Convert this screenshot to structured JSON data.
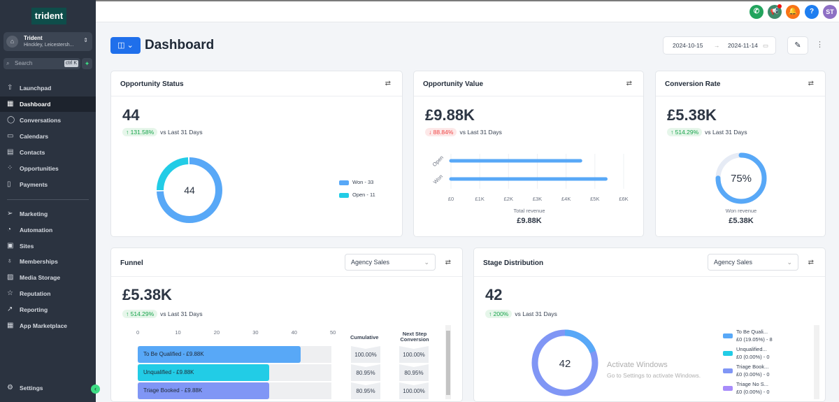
{
  "sidebar": {
    "logo": "trident",
    "account_name": "Trident",
    "account_location": "Hinckley, Leicestersh...",
    "search_placeholder": "Search",
    "search_shortcut": "ctrl K",
    "items": [
      {
        "label": "Launchpad",
        "icon": "rocket-icon"
      },
      {
        "label": "Dashboard",
        "icon": "grid-icon"
      },
      {
        "label": "Conversations",
        "icon": "chat-icon"
      },
      {
        "label": "Calendars",
        "icon": "calendar-icon"
      },
      {
        "label": "Contacts",
        "icon": "contacts-icon"
      },
      {
        "label": "Opportunities",
        "icon": "opportunities-icon"
      },
      {
        "label": "Payments",
        "icon": "payments-icon"
      }
    ],
    "items2": [
      {
        "label": "Marketing",
        "icon": "send-icon"
      },
      {
        "label": "Automation",
        "icon": "automation-icon"
      },
      {
        "label": "Sites",
        "icon": "sites-icon"
      },
      {
        "label": "Memberships",
        "icon": "award-icon"
      },
      {
        "label": "Media Storage",
        "icon": "image-icon"
      },
      {
        "label": "Reputation",
        "icon": "star-icon"
      },
      {
        "label": "Reporting",
        "icon": "trend-icon"
      },
      {
        "label": "App Marketplace",
        "icon": "apps-icon"
      }
    ],
    "settings": "Settings"
  },
  "topbar": {
    "avatar": "ST",
    "colors": {
      "phone": "#22a45d",
      "megaphone": "#3f8a6b",
      "bell": "#f97316",
      "help": "#1e7ef0",
      "avatar": "#8e6fc4"
    }
  },
  "header": {
    "title": "Dashboard",
    "date_from": "2024-10-15",
    "date_to": "2024-11-14"
  },
  "opportunity_status": {
    "title": "Opportunity Status",
    "value": "44",
    "change": "↑ 131.58%",
    "vs": "vs Last 31 Days",
    "center": "44",
    "legend": [
      "Won - 33",
      "Open - 11"
    ],
    "won": 33,
    "open": 11
  },
  "opportunity_value": {
    "title": "Opportunity Value",
    "value": "£9.88K",
    "change": "↓ 88.84%",
    "vs": "vs Last 31 Days",
    "categories": [
      "Open",
      "Won"
    ],
    "values": [
      4500,
      5380
    ],
    "ticks": [
      "£0",
      "£1K",
      "£2K",
      "£3K",
      "£4K",
      "£5K",
      "£6K"
    ],
    "total_label": "Total revenue",
    "total": "£9.88K"
  },
  "conversion_rate": {
    "title": "Conversion Rate",
    "value": "£5.38K",
    "change": "↑ 514.29%",
    "vs": "vs Last 31 Days",
    "percent": 75,
    "center": "75%",
    "label": "Won revenue",
    "total": "£5.38K"
  },
  "funnel": {
    "title": "Funnel",
    "pipeline": "Agency Sales",
    "value": "£5.38K",
    "change": "↑ 514.29%",
    "vs": "vs Last 31 Days",
    "ticks": [
      "0",
      "10",
      "20",
      "30",
      "40",
      "50"
    ],
    "col1": "Cumulative",
    "col2": "Next Step Conversion",
    "stages": [
      {
        "label": "To Be Qualified - £9.88K",
        "count": 42,
        "color": "#58a8f7",
        "cum": "100.00%",
        "next": "100.00%"
      },
      {
        "label": "Unqualified - £9.88K",
        "count": 34,
        "color": "#22cce6",
        "cum": "80.95%",
        "next": "80.95%"
      },
      {
        "label": "Triage Booked - £9.88K",
        "count": 34,
        "color": "#8096f5",
        "cum": "80.95%",
        "next": "100.00%"
      }
    ]
  },
  "stage_distribution": {
    "title": "Stage Distribution",
    "pipeline": "Agency Sales",
    "value": "42",
    "change": "↑ 200%",
    "vs": "vs Last 31 Days",
    "center": "42",
    "legend": [
      {
        "name": "To Be Quali...",
        "detail": "£0 (19.05%) - 8",
        "color": "#58a8f7"
      },
      {
        "name": "Unqualified...",
        "detail": "£0 (0.00%) - 0",
        "color": "#22cce6"
      },
      {
        "name": "Triage Book...",
        "detail": "£0 (0.00%) - 0",
        "color": "#8096f5"
      },
      {
        "name": "Triage No S...",
        "detail": "£0 (0.00%) - 0",
        "color": "#a78bfa"
      }
    ]
  },
  "watermark": {
    "line1": "Activate Windows",
    "line2": "Go to Settings to activate Windows."
  }
}
